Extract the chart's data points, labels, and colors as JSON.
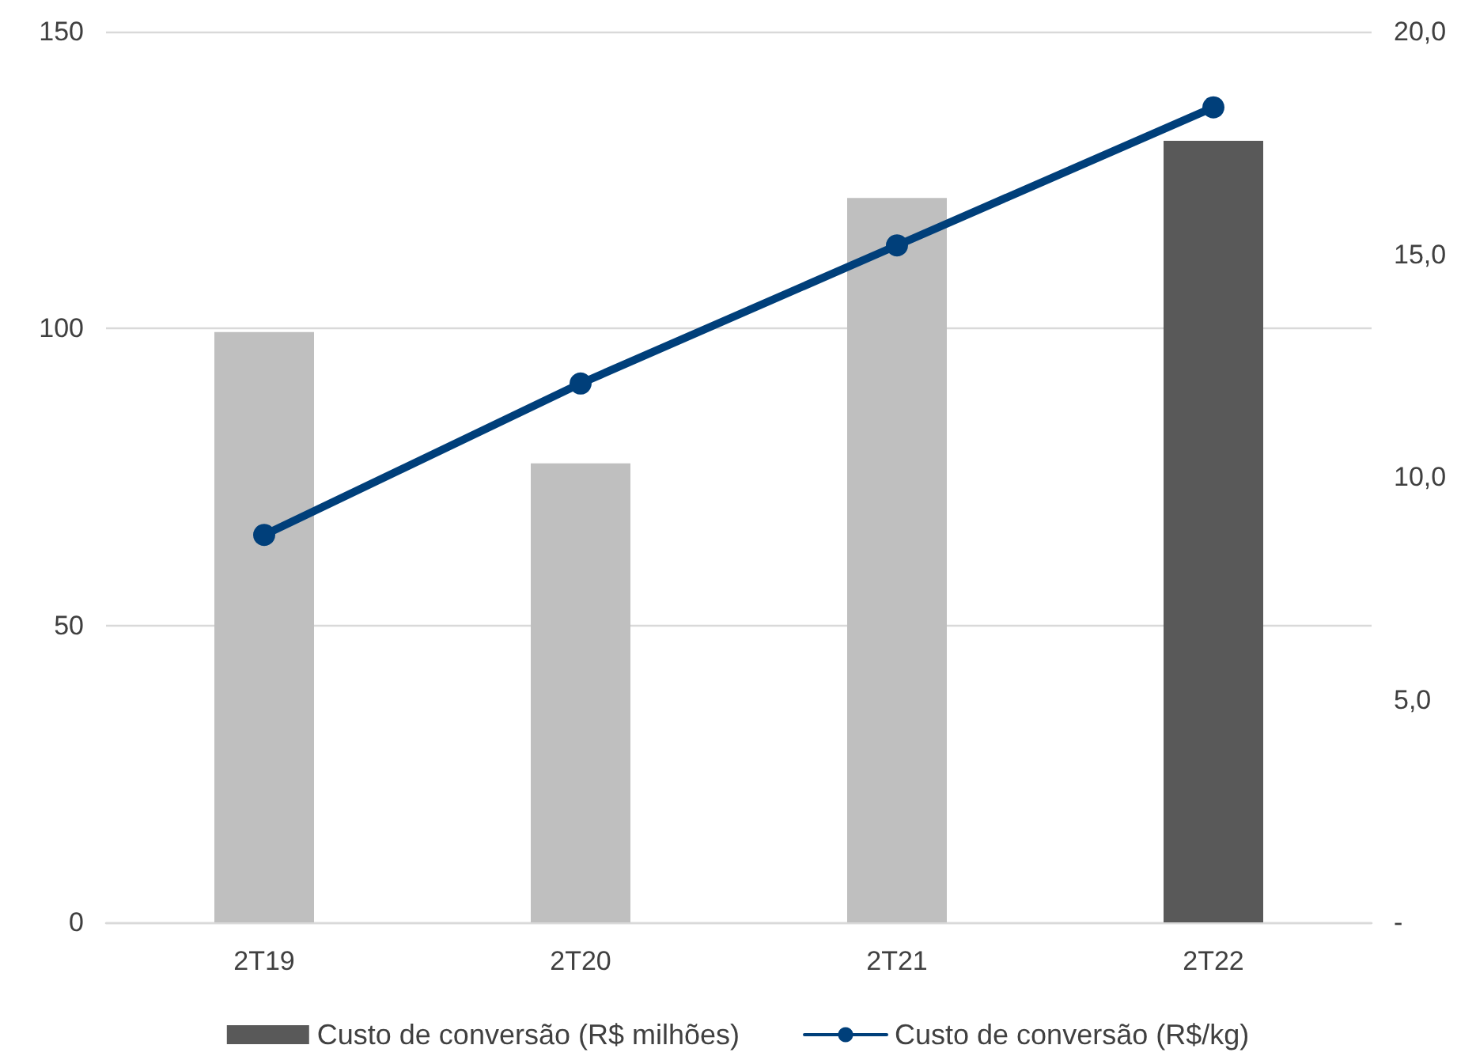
{
  "chart_data": {
    "type": "bar",
    "categories": [
      "2T19",
      "2T20",
      "2T21",
      "2T22"
    ],
    "series": [
      {
        "name": "Custo de conversão (R$ milhões)",
        "color": "#595959",
        "colors": [
          "#bfbfbf",
          "#bfbfbf",
          "#bfbfbf",
          "#595959"
        ],
        "values": [
          99.4,
          77.3,
          122,
          131.6
        ]
      },
      {
        "name": "Custo de conversão (R$/kg)",
        "type": "line",
        "axis": "y2",
        "color": "#003f7a",
        "values": [
          8.7,
          12.1,
          15.2,
          18.3
        ]
      }
    ],
    "ylim": [
      0,
      150
    ],
    "yticks": [
      0,
      50,
      100,
      150
    ],
    "y2lim": [
      0,
      20
    ],
    "y2ticks": [
      {
        "value": 0,
        "label": "-"
      },
      {
        "value": 5,
        "label": "5,0"
      },
      {
        "value": 10,
        "label": "10,0"
      },
      {
        "value": 15,
        "label": "15,0"
      },
      {
        "value": 20,
        "label": "20,0"
      }
    ],
    "grid": "y",
    "legend": "bottom",
    "marker": "circle",
    "line_style": "solid"
  }
}
